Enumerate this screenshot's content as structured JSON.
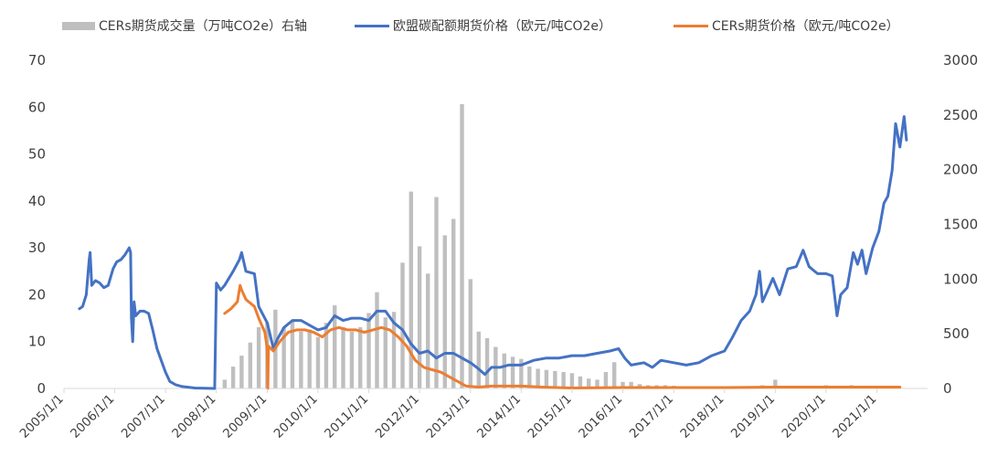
{
  "chart_data": {
    "type": "line",
    "title": "",
    "xlabel": "",
    "ylabel": "",
    "legend_position": "top",
    "grid": false,
    "x_range": [
      "2005-01-01",
      "2021-12-31"
    ],
    "ylim": [
      0,
      70
    ],
    "yticks": [
      0,
      10,
      20,
      30,
      40,
      50,
      60,
      70
    ],
    "y2lim": [
      0,
      3000
    ],
    "y2ticks": [
      0,
      500,
      1000,
      1500,
      2000,
      2500,
      3000
    ],
    "xticks": [
      "2005/1/1",
      "2006/1/1",
      "2007/1/1",
      "2008/1/1",
      "2009/1/1",
      "2010/1/1",
      "2011/1/1",
      "2012/1/1",
      "2013/1/1",
      "2014/1/1",
      "2015/1/1",
      "2016/1/1",
      "2017/1/1",
      "2018/1/1",
      "2019/1/1",
      "2020/1/1",
      "2021/1/1"
    ],
    "series": [
      {
        "name": "CERs期货成交量（万吨CO2e）右轴",
        "type": "bar",
        "axis": "right",
        "color": "#bfbfbf",
        "points": [
          [
            "2008-03-01",
            80
          ],
          [
            "2008-05-01",
            200
          ],
          [
            "2008-07-01",
            300
          ],
          [
            "2008-09-01",
            420
          ],
          [
            "2008-11-01",
            560
          ],
          [
            "2009-01-01",
            600
          ],
          [
            "2009-03-01",
            720
          ],
          [
            "2009-05-01",
            560
          ],
          [
            "2009-07-01",
            610
          ],
          [
            "2009-09-01",
            520
          ],
          [
            "2009-11-01",
            540
          ],
          [
            "2010-01-01",
            470
          ],
          [
            "2010-03-01",
            600
          ],
          [
            "2010-05-01",
            760
          ],
          [
            "2010-07-01",
            560
          ],
          [
            "2010-09-01",
            520
          ],
          [
            "2010-11-01",
            560
          ],
          [
            "2011-01-01",
            690
          ],
          [
            "2011-03-01",
            880
          ],
          [
            "2011-05-01",
            650
          ],
          [
            "2011-07-01",
            700
          ],
          [
            "2011-09-01",
            1150
          ],
          [
            "2011-11-01",
            1800
          ],
          [
            "2012-01-01",
            1300
          ],
          [
            "2012-03-01",
            1050
          ],
          [
            "2012-05-01",
            1750
          ],
          [
            "2012-07-01",
            1400
          ],
          [
            "2012-09-01",
            1550
          ],
          [
            "2012-11-01",
            2600
          ],
          [
            "2013-01-01",
            1000
          ],
          [
            "2013-03-01",
            520
          ],
          [
            "2013-05-01",
            460
          ],
          [
            "2013-07-01",
            380
          ],
          [
            "2013-09-01",
            320
          ],
          [
            "2013-11-01",
            290
          ],
          [
            "2014-01-01",
            270
          ],
          [
            "2014-03-01",
            200
          ],
          [
            "2014-05-01",
            180
          ],
          [
            "2014-07-01",
            170
          ],
          [
            "2014-09-01",
            160
          ],
          [
            "2014-11-01",
            150
          ],
          [
            "2015-01-01",
            140
          ],
          [
            "2015-03-01",
            110
          ],
          [
            "2015-05-01",
            90
          ],
          [
            "2015-07-01",
            80
          ],
          [
            "2015-09-01",
            150
          ],
          [
            "2015-11-01",
            240
          ],
          [
            "2016-01-01",
            60
          ],
          [
            "2016-03-01",
            60
          ],
          [
            "2016-05-01",
            40
          ],
          [
            "2016-07-01",
            30
          ],
          [
            "2016-09-01",
            30
          ],
          [
            "2016-11-01",
            30
          ],
          [
            "2017-01-01",
            25
          ],
          [
            "2017-04-01",
            20
          ],
          [
            "2017-07-01",
            20
          ],
          [
            "2017-10-01",
            15
          ],
          [
            "2018-01-01",
            15
          ],
          [
            "2018-04-01",
            20
          ],
          [
            "2018-07-01",
            20
          ],
          [
            "2018-10-01",
            30
          ],
          [
            "2019-01-01",
            80
          ],
          [
            "2019-04-01",
            20
          ],
          [
            "2019-07-01",
            20
          ],
          [
            "2019-10-01",
            20
          ],
          [
            "2020-01-01",
            30
          ],
          [
            "2020-04-01",
            20
          ],
          [
            "2020-07-01",
            30
          ],
          [
            "2020-10-01",
            20
          ],
          [
            "2021-01-01",
            20
          ],
          [
            "2021-04-01",
            20
          ]
        ]
      },
      {
        "name": "欧盟碳配额期货价格（欧元/吨CO2e）",
        "type": "line",
        "axis": "left",
        "color": "#4472c4",
        "points": [
          [
            "2005-04-22",
            17.0
          ],
          [
            "2005-05-15",
            17.5
          ],
          [
            "2005-06-10",
            20.0
          ],
          [
            "2005-07-01",
            27.5
          ],
          [
            "2005-07-08",
            29.0
          ],
          [
            "2005-07-20",
            22.0
          ],
          [
            "2005-08-15",
            23.0
          ],
          [
            "2005-09-15",
            22.5
          ],
          [
            "2005-10-15",
            21.5
          ],
          [
            "2005-11-15",
            22.0
          ],
          [
            "2005-12-20",
            25.5
          ],
          [
            "2006-01-15",
            27.0
          ],
          [
            "2006-02-15",
            27.5
          ],
          [
            "2006-03-15",
            28.5
          ],
          [
            "2006-04-15",
            30.0
          ],
          [
            "2006-04-25",
            29.0
          ],
          [
            "2006-05-01",
            15.0
          ],
          [
            "2006-05-10",
            10.0
          ],
          [
            "2006-05-20",
            18.5
          ],
          [
            "2006-06-01",
            15.5
          ],
          [
            "2006-07-01",
            16.5
          ],
          [
            "2006-08-01",
            16.5
          ],
          [
            "2006-09-01",
            16.0
          ],
          [
            "2006-10-01",
            12.5
          ],
          [
            "2006-11-01",
            8.5
          ],
          [
            "2006-12-01",
            6.0
          ],
          [
            "2007-01-01",
            3.5
          ],
          [
            "2007-02-01",
            1.5
          ],
          [
            "2007-03-15",
            0.8
          ],
          [
            "2007-05-01",
            0.4
          ],
          [
            "2007-08-01",
            0.1
          ],
          [
            "2007-12-20",
            0.0
          ],
          [
            "2008-01-02",
            22.5
          ],
          [
            "2008-02-01",
            21.0
          ],
          [
            "2008-03-01",
            22.0
          ],
          [
            "2008-05-01",
            25.0
          ],
          [
            "2008-06-15",
            27.5
          ],
          [
            "2008-07-01",
            29.0
          ],
          [
            "2008-08-01",
            25.0
          ],
          [
            "2008-10-01",
            24.5
          ],
          [
            "2008-11-01",
            17.5
          ],
          [
            "2009-01-01",
            14.0
          ],
          [
            "2009-02-15",
            8.5
          ],
          [
            "2009-03-15",
            10.5
          ],
          [
            "2009-05-01",
            13.0
          ],
          [
            "2009-07-01",
            14.5
          ],
          [
            "2009-09-01",
            14.5
          ],
          [
            "2009-11-01",
            13.5
          ],
          [
            "2010-01-01",
            12.5
          ],
          [
            "2010-03-01",
            13.0
          ],
          [
            "2010-05-01",
            15.5
          ],
          [
            "2010-07-01",
            14.5
          ],
          [
            "2010-09-01",
            15.0
          ],
          [
            "2010-11-01",
            15.0
          ],
          [
            "2011-01-01",
            14.5
          ],
          [
            "2011-03-01",
            16.5
          ],
          [
            "2011-05-01",
            16.5
          ],
          [
            "2011-07-01",
            14.0
          ],
          [
            "2011-09-01",
            12.5
          ],
          [
            "2011-11-01",
            9.5
          ],
          [
            "2012-01-01",
            7.5
          ],
          [
            "2012-03-01",
            8.0
          ],
          [
            "2012-05-01",
            6.5
          ],
          [
            "2012-07-01",
            7.5
          ],
          [
            "2012-09-01",
            7.5
          ],
          [
            "2012-11-01",
            6.5
          ],
          [
            "2013-01-01",
            5.5
          ],
          [
            "2013-02-15",
            4.5
          ],
          [
            "2013-04-15",
            3.0
          ],
          [
            "2013-06-01",
            4.5
          ],
          [
            "2013-08-01",
            4.5
          ],
          [
            "2013-10-01",
            5.0
          ],
          [
            "2014-01-01",
            5.0
          ],
          [
            "2014-04-01",
            6.0
          ],
          [
            "2014-07-01",
            6.5
          ],
          [
            "2014-10-01",
            6.5
          ],
          [
            "2015-01-01",
            7.0
          ],
          [
            "2015-04-01",
            7.0
          ],
          [
            "2015-07-01",
            7.5
          ],
          [
            "2015-10-01",
            8.0
          ],
          [
            "2015-12-01",
            8.5
          ],
          [
            "2016-01-15",
            6.5
          ],
          [
            "2016-03-01",
            5.0
          ],
          [
            "2016-06-01",
            5.5
          ],
          [
            "2016-08-01",
            4.5
          ],
          [
            "2016-10-01",
            6.0
          ],
          [
            "2017-01-01",
            5.5
          ],
          [
            "2017-04-01",
            5.0
          ],
          [
            "2017-07-01",
            5.5
          ],
          [
            "2017-10-01",
            7.0
          ],
          [
            "2018-01-01",
            8.0
          ],
          [
            "2018-03-01",
            11.0
          ],
          [
            "2018-05-01",
            14.5
          ],
          [
            "2018-07-01",
            16.5
          ],
          [
            "2018-08-15",
            20.0
          ],
          [
            "2018-09-10",
            25.0
          ],
          [
            "2018-10-01",
            18.5
          ],
          [
            "2018-11-01",
            20.5
          ],
          [
            "2018-12-15",
            23.5
          ],
          [
            "2019-02-01",
            20.0
          ],
          [
            "2019-04-01",
            25.5
          ],
          [
            "2019-06-01",
            26.0
          ],
          [
            "2019-07-20",
            29.5
          ],
          [
            "2019-09-01",
            26.0
          ],
          [
            "2019-11-01",
            24.5
          ],
          [
            "2020-01-01",
            24.5
          ],
          [
            "2020-02-15",
            24.0
          ],
          [
            "2020-03-20",
            15.5
          ],
          [
            "2020-04-15",
            20.0
          ],
          [
            "2020-06-01",
            21.5
          ],
          [
            "2020-07-15",
            29.0
          ],
          [
            "2020-08-15",
            26.5
          ],
          [
            "2020-09-15",
            29.5
          ],
          [
            "2020-10-15",
            24.5
          ],
          [
            "2020-12-01",
            30.0
          ],
          [
            "2021-01-15",
            33.5
          ],
          [
            "2021-02-20",
            39.5
          ],
          [
            "2021-03-20",
            41.0
          ],
          [
            "2021-04-20",
            46.5
          ],
          [
            "2021-05-15",
            56.5
          ],
          [
            "2021-06-15",
            51.5
          ],
          [
            "2021-07-15",
            58.0
          ],
          [
            "2021-08-01",
            53.0
          ]
        ]
      },
      {
        "name": "CERs期货价格（欧元/吨CO2e）",
        "type": "line",
        "axis": "left",
        "color": "#ed7d31",
        "points": [
          [
            "2008-03-01",
            16.0
          ],
          [
            "2008-04-15",
            17.0
          ],
          [
            "2008-06-01",
            18.5
          ],
          [
            "2008-06-20",
            22.0
          ],
          [
            "2008-07-01",
            21.0
          ],
          [
            "2008-08-01",
            19.0
          ],
          [
            "2008-10-01",
            17.5
          ],
          [
            "2008-11-01",
            15.0
          ],
          [
            "2008-12-15",
            12.0
          ],
          [
            "2009-01-01",
            8.5
          ],
          [
            "2009-01-05",
            0.0
          ],
          [
            "2009-01-10",
            9.0
          ],
          [
            "2009-02-15",
            8.0
          ],
          [
            "2009-04-01",
            10.0
          ],
          [
            "2009-06-01",
            12.0
          ],
          [
            "2009-08-01",
            12.5
          ],
          [
            "2009-10-01",
            12.5
          ],
          [
            "2009-12-01",
            12.0
          ],
          [
            "2010-02-01",
            11.0
          ],
          [
            "2010-04-01",
            12.5
          ],
          [
            "2010-06-01",
            13.0
          ],
          [
            "2010-08-01",
            12.5
          ],
          [
            "2010-10-01",
            12.5
          ],
          [
            "2010-12-01",
            12.0
          ],
          [
            "2011-02-01",
            12.5
          ],
          [
            "2011-04-01",
            13.0
          ],
          [
            "2011-06-01",
            12.5
          ],
          [
            "2011-08-01",
            11.0
          ],
          [
            "2011-10-01",
            9.0
          ],
          [
            "2011-12-01",
            6.0
          ],
          [
            "2012-02-01",
            4.5
          ],
          [
            "2012-04-01",
            4.0
          ],
          [
            "2012-06-01",
            3.5
          ],
          [
            "2012-08-01",
            2.5
          ],
          [
            "2012-10-01",
            1.5
          ],
          [
            "2012-12-01",
            0.5
          ],
          [
            "2013-03-01",
            0.3
          ],
          [
            "2013-06-01",
            0.5
          ],
          [
            "2013-09-01",
            0.5
          ],
          [
            "2014-01-01",
            0.5
          ],
          [
            "2014-06-01",
            0.3
          ],
          [
            "2015-01-01",
            0.1
          ],
          [
            "2016-01-01",
            0.2
          ],
          [
            "2017-01-01",
            0.2
          ],
          [
            "2018-01-01",
            0.2
          ],
          [
            "2019-01-01",
            0.3
          ],
          [
            "2020-01-01",
            0.3
          ],
          [
            "2021-01-01",
            0.3
          ],
          [
            "2021-06-15",
            0.3
          ]
        ]
      }
    ]
  }
}
